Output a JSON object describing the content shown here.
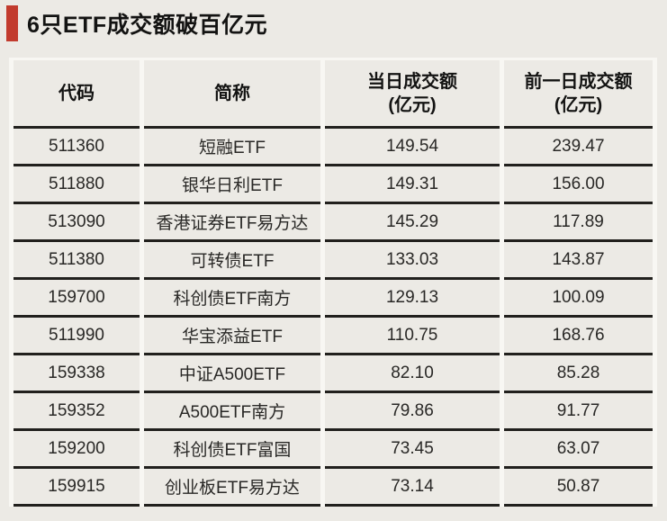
{
  "title": "6只ETF成交额破百亿元",
  "colors": {
    "accent_red": "#C23B2E",
    "page_bg": "#ECEAE5",
    "separator_white": "#F8F7F3",
    "rule_dark": "#21201D",
    "header_text": "#131312",
    "cell_text": "#292826"
  },
  "table": {
    "headers": [
      {
        "line1": "代码",
        "line2": ""
      },
      {
        "line1": "简称",
        "line2": ""
      },
      {
        "line1": "当日成交额",
        "line2": "(亿元)"
      },
      {
        "line1": "前一日成交额",
        "line2": "(亿元)"
      }
    ],
    "rows": [
      [
        "511360",
        "短融ETF",
        "149.54",
        "239.47"
      ],
      [
        "511880",
        "银华日利ETF",
        "149.31",
        "156.00"
      ],
      [
        "513090",
        "香港证券ETF易方达",
        "145.29",
        "117.89"
      ],
      [
        "511380",
        "可转债ETF",
        "133.03",
        "143.87"
      ],
      [
        "159700",
        "科创债ETF南方",
        "129.13",
        "100.09"
      ],
      [
        "511990",
        "华宝添益ETF",
        "110.75",
        "168.76"
      ],
      [
        "159338",
        "中证A500ETF",
        "82.10",
        "85.28"
      ],
      [
        "159352",
        "A500ETF南方",
        "79.86",
        "91.77"
      ],
      [
        "159200",
        "科创债ETF富国",
        "73.45",
        "63.07"
      ],
      [
        "159915",
        "创业板ETF易方达",
        "73.14",
        "50.87"
      ]
    ]
  },
  "chart_data": {
    "type": "table",
    "title": "6只ETF成交额破百亿元",
    "columns": [
      "代码",
      "简称",
      "当日成交额(亿元)",
      "前一日成交额(亿元)"
    ],
    "rows": [
      {
        "code": "511360",
        "name": "短融ETF",
        "today_volume": 149.54,
        "prev_volume": 239.47
      },
      {
        "code": "511880",
        "name": "银华日利ETF",
        "today_volume": 149.31,
        "prev_volume": 156.0
      },
      {
        "code": "513090",
        "name": "香港证券ETF易方达",
        "today_volume": 145.29,
        "prev_volume": 117.89
      },
      {
        "code": "511380",
        "name": "可转债ETF",
        "today_volume": 133.03,
        "prev_volume": 143.87
      },
      {
        "code": "159700",
        "name": "科创债ETF南方",
        "today_volume": 129.13,
        "prev_volume": 100.09
      },
      {
        "code": "511990",
        "name": "华宝添益ETF",
        "today_volume": 110.75,
        "prev_volume": 168.76
      },
      {
        "code": "159338",
        "name": "中证A500ETF",
        "today_volume": 82.1,
        "prev_volume": 85.28
      },
      {
        "code": "159352",
        "name": "A500ETF南方",
        "today_volume": 79.86,
        "prev_volume": 91.77
      },
      {
        "code": "159200",
        "name": "科创债ETF富国",
        "today_volume": 73.45,
        "prev_volume": 63.07
      },
      {
        "code": "159915",
        "name": "创业板ETF易方达",
        "today_volume": 73.14,
        "prev_volume": 50.87
      }
    ]
  }
}
